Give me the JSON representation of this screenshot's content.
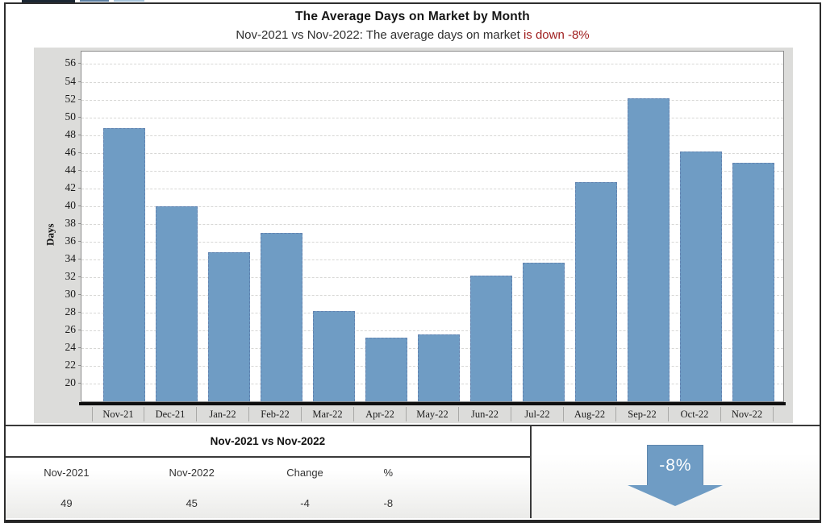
{
  "header": {
    "title": "The Average Days on Market by Month",
    "subtitle_text": "Nov-2021 vs Nov-2022: The average days on market ",
    "subtitle_highlight": "is down -8%"
  },
  "chart_data": {
    "type": "bar",
    "title": "The Average Days on Market by Month",
    "xlabel": "",
    "ylabel": "Days",
    "categories": [
      "Nov-21",
      "Dec-21",
      "Jan-22",
      "Feb-22",
      "Mar-22",
      "Apr-22",
      "May-22",
      "Jun-22",
      "Jul-22",
      "Aug-22",
      "Sep-22",
      "Oct-22",
      "Nov-22"
    ],
    "values": [
      48.6,
      39.8,
      34.6,
      36.8,
      28,
      25,
      25.4,
      32,
      33.5,
      42.5,
      52,
      46,
      44.7
    ],
    "yticks": [
      20,
      22,
      24,
      26,
      28,
      30,
      32,
      34,
      36,
      38,
      40,
      42,
      44,
      46,
      48,
      50,
      52,
      54,
      56
    ],
    "ylim": [
      17.85,
      57.4
    ],
    "grid": true,
    "legend_position": "none",
    "bar_color": "#6f9cc4"
  },
  "summary": {
    "header": "Nov-2021 vs Nov-2022",
    "columns": [
      "Nov-2021",
      "Nov-2022",
      "Change",
      "%"
    ],
    "values": [
      "49",
      "45",
      "-4",
      "-8"
    ],
    "arrow_label": "-8%"
  },
  "colors": {
    "bar": "#6f9cc4",
    "bar_border": "#5f87ad",
    "panel_bg": "#dcdcda",
    "subtitle_highlight": "#9e1b1b",
    "arrow": "#6f9cc4",
    "tab_slivers": [
      "#1c2733",
      "#5b7fa3",
      "#a9c5dc"
    ]
  }
}
